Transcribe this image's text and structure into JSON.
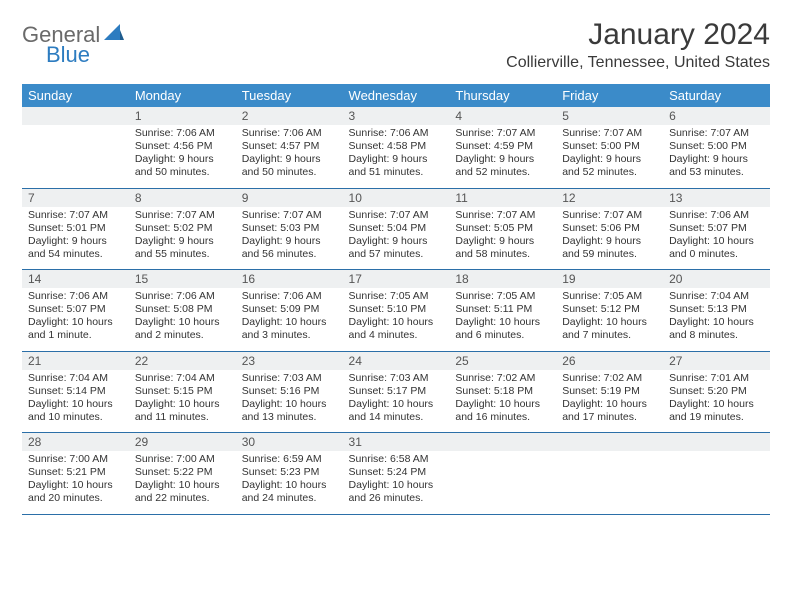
{
  "logo": {
    "word1": "General",
    "word2": "Blue"
  },
  "colors": {
    "header_bg": "#3b8bc9",
    "header_text": "#ffffff",
    "rule": "#2b6fa8",
    "daynum_bg": "#eef0f1",
    "text": "#333333",
    "logo_gray": "#6a6a6a",
    "logo_blue": "#2d7cc0"
  },
  "title": "January 2024",
  "location": "Collierville, Tennessee, United States",
  "day_names": [
    "Sunday",
    "Monday",
    "Tuesday",
    "Wednesday",
    "Thursday",
    "Friday",
    "Saturday"
  ],
  "weeks": [
    [
      {
        "num": "",
        "sunrise": "",
        "sunset": "",
        "daylight": ""
      },
      {
        "num": "1",
        "sunrise": "Sunrise: 7:06 AM",
        "sunset": "Sunset: 4:56 PM",
        "daylight": "Daylight: 9 hours and 50 minutes."
      },
      {
        "num": "2",
        "sunrise": "Sunrise: 7:06 AM",
        "sunset": "Sunset: 4:57 PM",
        "daylight": "Daylight: 9 hours and 50 minutes."
      },
      {
        "num": "3",
        "sunrise": "Sunrise: 7:06 AM",
        "sunset": "Sunset: 4:58 PM",
        "daylight": "Daylight: 9 hours and 51 minutes."
      },
      {
        "num": "4",
        "sunrise": "Sunrise: 7:07 AM",
        "sunset": "Sunset: 4:59 PM",
        "daylight": "Daylight: 9 hours and 52 minutes."
      },
      {
        "num": "5",
        "sunrise": "Sunrise: 7:07 AM",
        "sunset": "Sunset: 5:00 PM",
        "daylight": "Daylight: 9 hours and 52 minutes."
      },
      {
        "num": "6",
        "sunrise": "Sunrise: 7:07 AM",
        "sunset": "Sunset: 5:00 PM",
        "daylight": "Daylight: 9 hours and 53 minutes."
      }
    ],
    [
      {
        "num": "7",
        "sunrise": "Sunrise: 7:07 AM",
        "sunset": "Sunset: 5:01 PM",
        "daylight": "Daylight: 9 hours and 54 minutes."
      },
      {
        "num": "8",
        "sunrise": "Sunrise: 7:07 AM",
        "sunset": "Sunset: 5:02 PM",
        "daylight": "Daylight: 9 hours and 55 minutes."
      },
      {
        "num": "9",
        "sunrise": "Sunrise: 7:07 AM",
        "sunset": "Sunset: 5:03 PM",
        "daylight": "Daylight: 9 hours and 56 minutes."
      },
      {
        "num": "10",
        "sunrise": "Sunrise: 7:07 AM",
        "sunset": "Sunset: 5:04 PM",
        "daylight": "Daylight: 9 hours and 57 minutes."
      },
      {
        "num": "11",
        "sunrise": "Sunrise: 7:07 AM",
        "sunset": "Sunset: 5:05 PM",
        "daylight": "Daylight: 9 hours and 58 minutes."
      },
      {
        "num": "12",
        "sunrise": "Sunrise: 7:07 AM",
        "sunset": "Sunset: 5:06 PM",
        "daylight": "Daylight: 9 hours and 59 minutes."
      },
      {
        "num": "13",
        "sunrise": "Sunrise: 7:06 AM",
        "sunset": "Sunset: 5:07 PM",
        "daylight": "Daylight: 10 hours and 0 minutes."
      }
    ],
    [
      {
        "num": "14",
        "sunrise": "Sunrise: 7:06 AM",
        "sunset": "Sunset: 5:07 PM",
        "daylight": "Daylight: 10 hours and 1 minute."
      },
      {
        "num": "15",
        "sunrise": "Sunrise: 7:06 AM",
        "sunset": "Sunset: 5:08 PM",
        "daylight": "Daylight: 10 hours and 2 minutes."
      },
      {
        "num": "16",
        "sunrise": "Sunrise: 7:06 AM",
        "sunset": "Sunset: 5:09 PM",
        "daylight": "Daylight: 10 hours and 3 minutes."
      },
      {
        "num": "17",
        "sunrise": "Sunrise: 7:05 AM",
        "sunset": "Sunset: 5:10 PM",
        "daylight": "Daylight: 10 hours and 4 minutes."
      },
      {
        "num": "18",
        "sunrise": "Sunrise: 7:05 AM",
        "sunset": "Sunset: 5:11 PM",
        "daylight": "Daylight: 10 hours and 6 minutes."
      },
      {
        "num": "19",
        "sunrise": "Sunrise: 7:05 AM",
        "sunset": "Sunset: 5:12 PM",
        "daylight": "Daylight: 10 hours and 7 minutes."
      },
      {
        "num": "20",
        "sunrise": "Sunrise: 7:04 AM",
        "sunset": "Sunset: 5:13 PM",
        "daylight": "Daylight: 10 hours and 8 minutes."
      }
    ],
    [
      {
        "num": "21",
        "sunrise": "Sunrise: 7:04 AM",
        "sunset": "Sunset: 5:14 PM",
        "daylight": "Daylight: 10 hours and 10 minutes."
      },
      {
        "num": "22",
        "sunrise": "Sunrise: 7:04 AM",
        "sunset": "Sunset: 5:15 PM",
        "daylight": "Daylight: 10 hours and 11 minutes."
      },
      {
        "num": "23",
        "sunrise": "Sunrise: 7:03 AM",
        "sunset": "Sunset: 5:16 PM",
        "daylight": "Daylight: 10 hours and 13 minutes."
      },
      {
        "num": "24",
        "sunrise": "Sunrise: 7:03 AM",
        "sunset": "Sunset: 5:17 PM",
        "daylight": "Daylight: 10 hours and 14 minutes."
      },
      {
        "num": "25",
        "sunrise": "Sunrise: 7:02 AM",
        "sunset": "Sunset: 5:18 PM",
        "daylight": "Daylight: 10 hours and 16 minutes."
      },
      {
        "num": "26",
        "sunrise": "Sunrise: 7:02 AM",
        "sunset": "Sunset: 5:19 PM",
        "daylight": "Daylight: 10 hours and 17 minutes."
      },
      {
        "num": "27",
        "sunrise": "Sunrise: 7:01 AM",
        "sunset": "Sunset: 5:20 PM",
        "daylight": "Daylight: 10 hours and 19 minutes."
      }
    ],
    [
      {
        "num": "28",
        "sunrise": "Sunrise: 7:00 AM",
        "sunset": "Sunset: 5:21 PM",
        "daylight": "Daylight: 10 hours and 20 minutes."
      },
      {
        "num": "29",
        "sunrise": "Sunrise: 7:00 AM",
        "sunset": "Sunset: 5:22 PM",
        "daylight": "Daylight: 10 hours and 22 minutes."
      },
      {
        "num": "30",
        "sunrise": "Sunrise: 6:59 AM",
        "sunset": "Sunset: 5:23 PM",
        "daylight": "Daylight: 10 hours and 24 minutes."
      },
      {
        "num": "31",
        "sunrise": "Sunrise: 6:58 AM",
        "sunset": "Sunset: 5:24 PM",
        "daylight": "Daylight: 10 hours and 26 minutes."
      },
      {
        "num": "",
        "sunrise": "",
        "sunset": "",
        "daylight": ""
      },
      {
        "num": "",
        "sunrise": "",
        "sunset": "",
        "daylight": ""
      },
      {
        "num": "",
        "sunrise": "",
        "sunset": "",
        "daylight": ""
      }
    ]
  ]
}
